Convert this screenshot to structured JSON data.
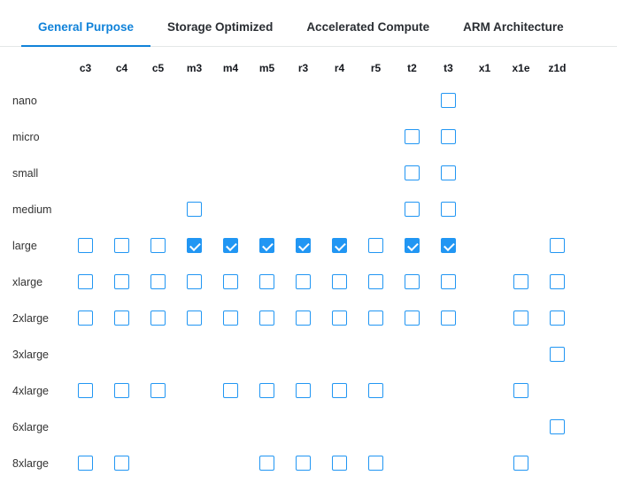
{
  "tabs": [
    {
      "label": "General Purpose",
      "active": true
    },
    {
      "label": "Storage Optimized",
      "active": false
    },
    {
      "label": "Accelerated Compute",
      "active": false
    },
    {
      "label": "ARM Architecture",
      "active": false
    }
  ],
  "colors": {
    "tab_active": "#1082d9",
    "tab_underline": "#1082d9",
    "checkbox": "#2196f3"
  },
  "matrix": {
    "columns": [
      "c3",
      "c4",
      "c5",
      "m3",
      "m4",
      "m5",
      "r3",
      "r4",
      "r5",
      "t2",
      "t3",
      "x1",
      "x1e",
      "z1d"
    ],
    "rows": [
      {
        "label": "nano",
        "cells": [
          null,
          null,
          null,
          null,
          null,
          null,
          null,
          null,
          null,
          null,
          "unchecked",
          null,
          null,
          null
        ]
      },
      {
        "label": "micro",
        "cells": [
          null,
          null,
          null,
          null,
          null,
          null,
          null,
          null,
          null,
          "unchecked",
          "unchecked",
          null,
          null,
          null
        ]
      },
      {
        "label": "small",
        "cells": [
          null,
          null,
          null,
          null,
          null,
          null,
          null,
          null,
          null,
          "unchecked",
          "unchecked",
          null,
          null,
          null
        ]
      },
      {
        "label": "medium",
        "cells": [
          null,
          null,
          null,
          "unchecked",
          null,
          null,
          null,
          null,
          null,
          "unchecked",
          "unchecked",
          null,
          null,
          null
        ]
      },
      {
        "label": "large",
        "cells": [
          "unchecked",
          "unchecked",
          "unchecked",
          "checked",
          "checked",
          "checked",
          "checked",
          "checked",
          "unchecked",
          "checked",
          "checked",
          null,
          null,
          "unchecked"
        ]
      },
      {
        "label": "xlarge",
        "cells": [
          "unchecked",
          "unchecked",
          "unchecked",
          "unchecked",
          "unchecked",
          "unchecked",
          "unchecked",
          "unchecked",
          "unchecked",
          "unchecked",
          "unchecked",
          null,
          "unchecked",
          "unchecked"
        ]
      },
      {
        "label": "2xlarge",
        "cells": [
          "unchecked",
          "unchecked",
          "unchecked",
          "unchecked",
          "unchecked",
          "unchecked",
          "unchecked",
          "unchecked",
          "unchecked",
          "unchecked",
          "unchecked",
          null,
          "unchecked",
          "unchecked"
        ]
      },
      {
        "label": "3xlarge",
        "cells": [
          null,
          null,
          null,
          null,
          null,
          null,
          null,
          null,
          null,
          null,
          null,
          null,
          null,
          "unchecked"
        ]
      },
      {
        "label": "4xlarge",
        "cells": [
          "unchecked",
          "unchecked",
          "unchecked",
          null,
          "unchecked",
          "unchecked",
          "unchecked",
          "unchecked",
          "unchecked",
          null,
          null,
          null,
          "unchecked",
          null
        ]
      },
      {
        "label": "6xlarge",
        "cells": [
          null,
          null,
          null,
          null,
          null,
          null,
          null,
          null,
          null,
          null,
          null,
          null,
          null,
          "unchecked"
        ]
      },
      {
        "label": "8xlarge",
        "cells": [
          "unchecked",
          "unchecked",
          null,
          null,
          null,
          "unchecked",
          "unchecked",
          "unchecked",
          "unchecked",
          null,
          null,
          null,
          "unchecked",
          null
        ]
      }
    ]
  }
}
